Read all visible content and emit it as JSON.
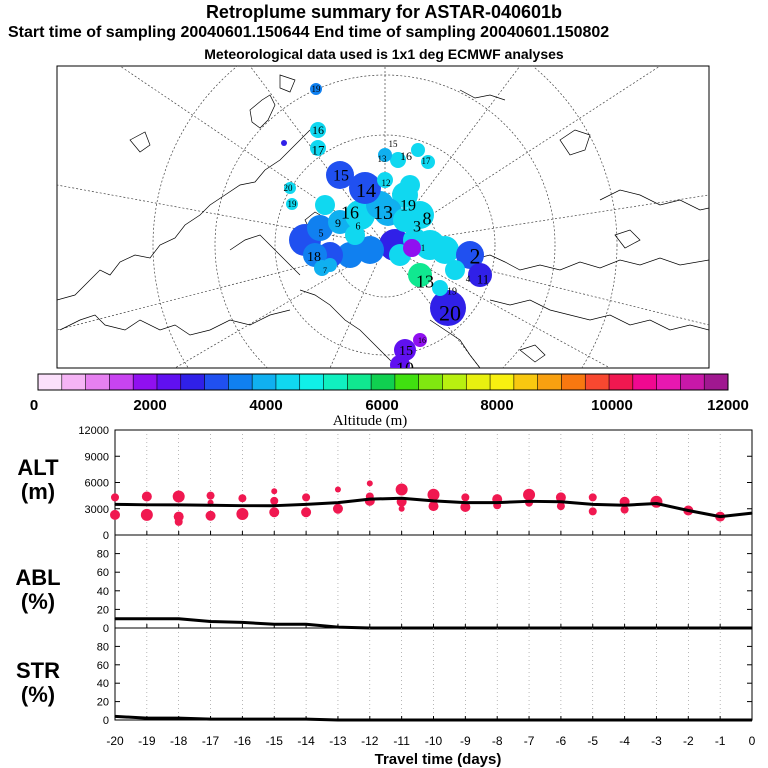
{
  "header": {
    "title": "Retroplume summary for ASTAR-040601b",
    "sampling": "Start time of sampling 20040601.150644      End time of sampling 20040601.150802",
    "meteo": "Meteorological data used is 1x1 deg ECMWF analyses"
  },
  "colorbar": {
    "label": "Altitude (m)",
    "ticks": [
      "0",
      "2000",
      "4000",
      "6000",
      "8000",
      "10000",
      "12000"
    ],
    "colors": [
      "#fbe0fb",
      "#f5b4f5",
      "#e680f0",
      "#c844f0",
      "#9010f0",
      "#6010f0",
      "#3020e8",
      "#2050f0",
      "#1080f0",
      "#10b0f0",
      "#10d8f0",
      "#10f0e8",
      "#10f0c0",
      "#10e890",
      "#10d050",
      "#40e010",
      "#80e810",
      "#b8f010",
      "#e8f010",
      "#f8f010",
      "#f8c810",
      "#f8a010",
      "#f87810",
      "#f84830",
      "#f01850",
      "#f00890",
      "#e818b0",
      "#c818a8",
      "#a01890"
    ]
  },
  "map": {
    "labels": [
      {
        "text": "19",
        "c": "#1080f0"
      },
      {
        "text": "16",
        "c": "#10b0f0"
      },
      {
        "text": "17",
        "c": "#10d8f0"
      },
      {
        "text": "15",
        "c": "#2050f0"
      },
      {
        "text": "14",
        "c": "#2050f0"
      },
      {
        "text": "12",
        "c": "#10b0f0"
      },
      {
        "text": "20",
        "c": "#10d8f0"
      },
      {
        "text": "19",
        "c": "#10d8f0"
      },
      {
        "text": "16",
        "c": "#10b0f0"
      },
      {
        "text": "13",
        "c": "#10b0f0"
      },
      {
        "text": "19",
        "c": "#10d8f0"
      },
      {
        "text": "8",
        "c": "#10d8f0"
      },
      {
        "text": "15",
        "c": "#10d8f0"
      },
      {
        "text": "16",
        "c": "#10d8f0"
      },
      {
        "text": "17",
        "c": "#10d8f0"
      },
      {
        "text": "13",
        "c": "#10d8f0"
      },
      {
        "text": "2",
        "c": "#10d8f0"
      },
      {
        "text": "13",
        "c": "#2050f0"
      },
      {
        "text": "11",
        "c": "#10e890"
      },
      {
        "text": "4",
        "c": "#3020e8"
      },
      {
        "text": "19",
        "c": "#10b0f0"
      },
      {
        "text": "20",
        "c": "#10d8f0"
      },
      {
        "text": "15",
        "c": "#3020e8"
      },
      {
        "text": "16",
        "c": "#6010f0"
      },
      {
        "text": "10",
        "c": "#9010f0"
      },
      {
        "text": "7",
        "c": "#6010f0"
      },
      {
        "text": "18",
        "c": "#10b0f0"
      },
      {
        "text": "6",
        "c": "#1080f0"
      },
      {
        "text": "9",
        "c": "#2050f0"
      },
      {
        "text": "5",
        "c": "#10b0f0"
      },
      {
        "text": "3",
        "c": "#1080f0"
      },
      {
        "text": "1",
        "c": "#10d8f0"
      }
    ]
  },
  "chart_data": [
    {
      "type": "line",
      "panel": "ALT",
      "ylabel": "ALT\n(m)",
      "ylim": [
        0,
        12000
      ],
      "yticks": [
        "12000",
        "9000",
        "6000",
        "3000",
        "0"
      ],
      "x": [
        -20,
        -19,
        -18,
        -17,
        -16,
        -15,
        -14,
        -13,
        -12,
        -11,
        -10,
        -9,
        -8,
        -7,
        -6,
        -5,
        -4,
        -3,
        -2,
        -1,
        0
      ],
      "values": [
        3500,
        3450,
        3450,
        3400,
        3350,
        3350,
        3500,
        3700,
        4100,
        4200,
        3900,
        3700,
        3700,
        3850,
        3800,
        3500,
        3400,
        3600,
        2800,
        2100,
        2500
      ],
      "spread_points": [
        {
          "x": -20,
          "y": 4300,
          "s": 3
        },
        {
          "x": -20,
          "y": 2300,
          "s": 4
        },
        {
          "x": -19,
          "y": 4400,
          "s": 4
        },
        {
          "x": -19,
          "y": 2300,
          "s": 5
        },
        {
          "x": -18,
          "y": 4400,
          "s": 5
        },
        {
          "x": -18,
          "y": 2100,
          "s": 4
        },
        {
          "x": -18,
          "y": 1500,
          "s": 3
        },
        {
          "x": -17,
          "y": 4500,
          "s": 3
        },
        {
          "x": -17,
          "y": 3700,
          "s": 2
        },
        {
          "x": -17,
          "y": 2200,
          "s": 4
        },
        {
          "x": -16,
          "y": 4200,
          "s": 3
        },
        {
          "x": -16,
          "y": 2400,
          "s": 5
        },
        {
          "x": -15,
          "y": 5000,
          "s": 2
        },
        {
          "x": -15,
          "y": 3900,
          "s": 3
        },
        {
          "x": -15,
          "y": 2600,
          "s": 4
        },
        {
          "x": -14,
          "y": 4300,
          "s": 3
        },
        {
          "x": -14,
          "y": 2600,
          "s": 4
        },
        {
          "x": -13,
          "y": 5200,
          "s": 2
        },
        {
          "x": -13,
          "y": 3000,
          "s": 4
        },
        {
          "x": -12,
          "y": 5900,
          "s": 2
        },
        {
          "x": -12,
          "y": 4400,
          "s": 3
        },
        {
          "x": -12,
          "y": 3900,
          "s": 4
        },
        {
          "x": -11,
          "y": 5200,
          "s": 5
        },
        {
          "x": -11,
          "y": 3800,
          "s": 4
        },
        {
          "x": -11,
          "y": 3000,
          "s": 2
        },
        {
          "x": -10,
          "y": 4600,
          "s": 5
        },
        {
          "x": -10,
          "y": 3300,
          "s": 4
        },
        {
          "x": -9,
          "y": 4300,
          "s": 3
        },
        {
          "x": -9,
          "y": 3200,
          "s": 4
        },
        {
          "x": -8,
          "y": 4100,
          "s": 4
        },
        {
          "x": -8,
          "y": 3400,
          "s": 3
        },
        {
          "x": -7,
          "y": 4600,
          "s": 5
        },
        {
          "x": -7,
          "y": 3700,
          "s": 3
        },
        {
          "x": -6,
          "y": 4300,
          "s": 4
        },
        {
          "x": -6,
          "y": 3300,
          "s": 3
        },
        {
          "x": -5,
          "y": 4300,
          "s": 3
        },
        {
          "x": -5,
          "y": 2700,
          "s": 3
        },
        {
          "x": -4,
          "y": 3800,
          "s": 4
        },
        {
          "x": -4,
          "y": 2900,
          "s": 3
        },
        {
          "x": -3,
          "y": 3800,
          "s": 5
        },
        {
          "x": -2,
          "y": 2800,
          "s": 4
        },
        {
          "x": -1,
          "y": 2100,
          "s": 4
        }
      ]
    },
    {
      "type": "line",
      "panel": "ABL",
      "ylabel": "ABL\n(%)",
      "ylim": [
        0,
        100
      ],
      "yticks": [
        "80",
        "60",
        "40",
        "20",
        "0"
      ],
      "x": [
        -20,
        -19,
        -18,
        -17,
        -16,
        -15,
        -14,
        -13,
        -12,
        -11,
        -10,
        -9,
        -8,
        -7,
        -6,
        -5,
        -4,
        -3,
        -2,
        -1,
        0
      ],
      "values": [
        10,
        10,
        10,
        7,
        6,
        4,
        4,
        1,
        0,
        0,
        0,
        0,
        0,
        0,
        0,
        0,
        0,
        0,
        0,
        0,
        0
      ]
    },
    {
      "type": "line",
      "panel": "STR",
      "ylabel": "STR\n(%)",
      "ylim": [
        0,
        100
      ],
      "yticks": [
        "80",
        "60",
        "40",
        "20",
        "0"
      ],
      "xlabel": "Travel time (days)",
      "xticks": [
        "-20",
        "-19",
        "-18",
        "-17",
        "-16",
        "-15",
        "-14",
        "-13",
        "-12",
        "-11",
        "-10",
        "-9",
        "-8",
        "-7",
        "-6",
        "-5",
        "-4",
        "-3",
        "-2",
        "-1",
        "0"
      ],
      "x": [
        -20,
        -19,
        -18,
        -17,
        -16,
        -15,
        -14,
        -13,
        -12,
        -11,
        -10,
        -9,
        -8,
        -7,
        -6,
        -5,
        -4,
        -3,
        -2,
        -1,
        0
      ],
      "values": [
        4,
        2,
        2,
        1,
        1,
        1,
        1,
        0,
        0,
        0,
        0,
        0,
        0,
        0,
        0,
        0,
        0,
        0,
        0,
        0,
        0
      ]
    }
  ]
}
